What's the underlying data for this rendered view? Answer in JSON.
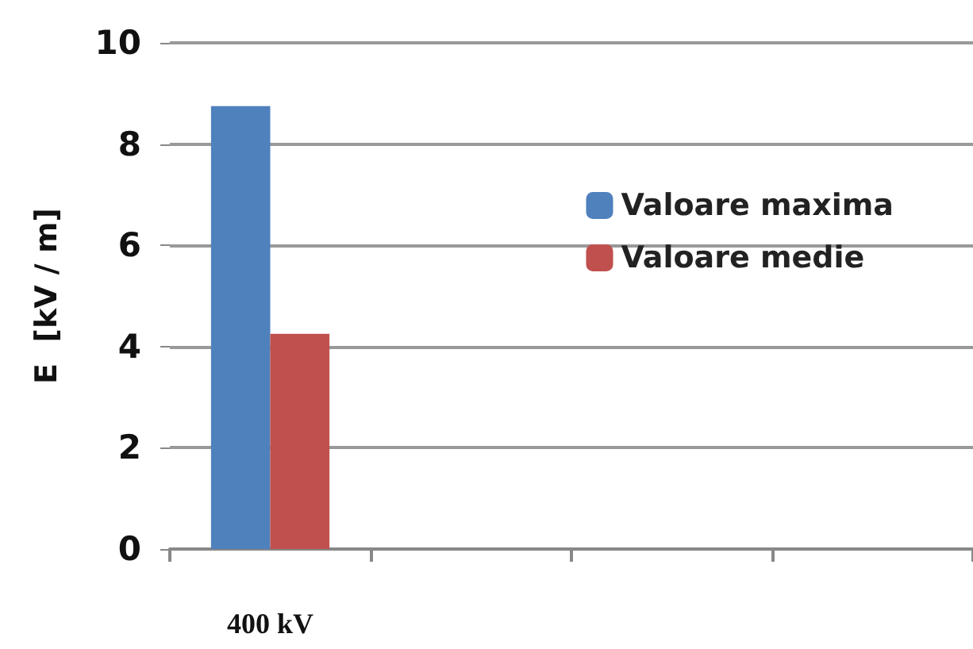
{
  "chart_data": {
    "type": "bar",
    "ylabel": "E  [kV / m]",
    "categories": [
      "400 kV",
      null,
      null,
      null
    ],
    "series": [
      {
        "name": "Valoare maxima",
        "color": "#4f81bd",
        "values": [
          8.75,
          null,
          null,
          null
        ]
      },
      {
        "name": "Valoare medie",
        "color": "#c0504d",
        "values": [
          4.25,
          null,
          null,
          null
        ]
      }
    ],
    "ylim": [
      0,
      10
    ],
    "yticks": [
      0,
      2,
      4,
      6,
      8,
      10
    ],
    "grid": "y",
    "legend": "right"
  }
}
